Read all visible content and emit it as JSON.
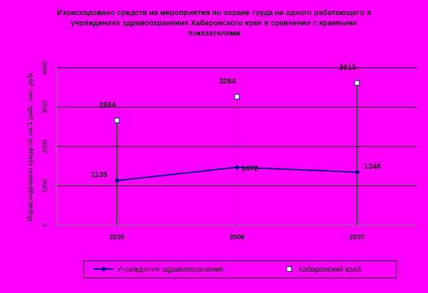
{
  "chart_data": {
    "type": "line",
    "title": "Израсходовано средств на мероприятия по охране труда на одного работающего в учреждениях здравоохранения Хабаровского края в сравнении с краевыми показателями",
    "y_label": "Израсходовано средств на 1 раб. тыс. руб.",
    "categories": [
      "2005",
      "2006",
      "2007"
    ],
    "series": [
      {
        "name": "Учреждения здравоохранения",
        "color": "#000080",
        "values": [
          1135,
          1472,
          1348
        ]
      },
      {
        "name": "Хабаровский край",
        "color": "#ffffff",
        "values": [
          2664,
          3264,
          3613
        ]
      }
    ],
    "ylim": [
      0,
      4000
    ],
    "yticks": [
      0,
      1000,
      2000,
      3000,
      4000
    ],
    "grid": true,
    "legend": "bottom"
  }
}
